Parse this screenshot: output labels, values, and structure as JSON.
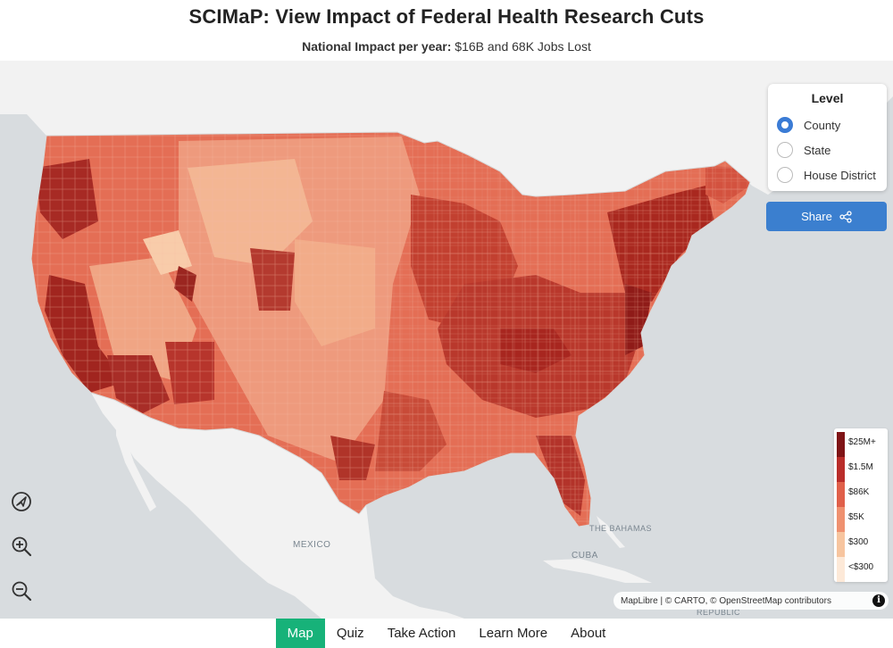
{
  "header": {
    "title": "SCIMaP: View Impact of Federal Health Research Cuts",
    "subtitle_bold": "National Impact per year:",
    "subtitle_rest": " $16B and 68K Jobs Lost"
  },
  "level_panel": {
    "title": "Level",
    "options": [
      {
        "label": "County",
        "checked": true
      },
      {
        "label": "State",
        "checked": false
      },
      {
        "label": "House District",
        "checked": false
      }
    ]
  },
  "share": {
    "label": "Share",
    "icon": "share-icon"
  },
  "map_controls": [
    {
      "name": "locate-icon"
    },
    {
      "name": "zoom-in-icon"
    },
    {
      "name": "zoom-out-icon"
    }
  ],
  "legend": {
    "items": [
      {
        "label": "$25M+",
        "color": "#7f1416"
      },
      {
        "label": "$1.5M",
        "color": "#b92d2a"
      },
      {
        "label": "$86K",
        "color": "#e0604a"
      },
      {
        "label": "$5K",
        "color": "#ef9170"
      },
      {
        "label": "$300",
        "color": "#f7c59f"
      },
      {
        "label": "<$300",
        "color": "#fde9d8"
      }
    ]
  },
  "map_labels": {
    "mexico": "MEXICO",
    "cuba": "CUBA",
    "bahamas": "THE BAHAMAS",
    "republic": "REPUBLIC"
  },
  "attribution": "MapLibre | © CARTO, © OpenStreetMap contributors",
  "nav": [
    {
      "label": "Map",
      "active": true
    },
    {
      "label": "Quiz",
      "active": false
    },
    {
      "label": "Take Action",
      "active": false
    },
    {
      "label": "Learn More",
      "active": false
    },
    {
      "label": "About",
      "active": false
    }
  ],
  "colors": {
    "accent": "#3b7fcf",
    "nav_active": "#17b279",
    "land": "#f2f2f2",
    "water": "#d8dcdf"
  }
}
